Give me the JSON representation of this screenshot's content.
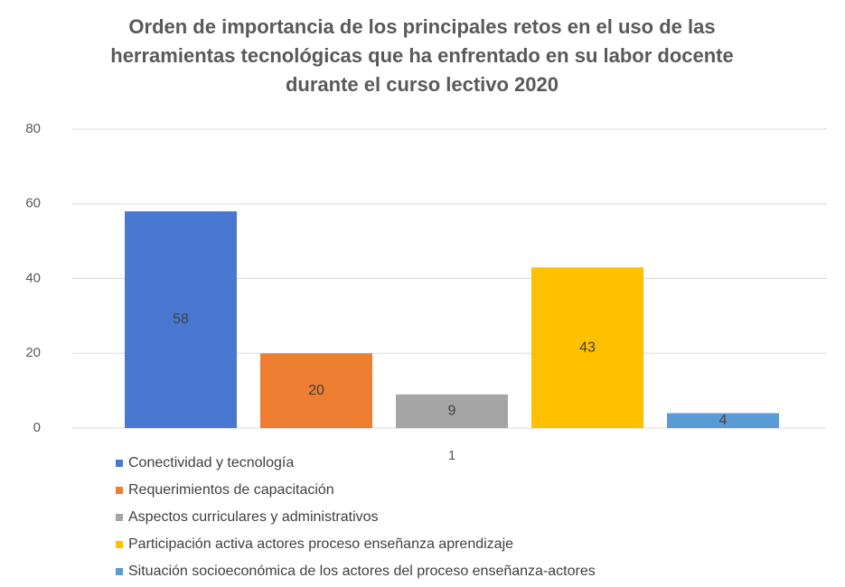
{
  "chart_data": {
    "type": "bar",
    "title": "Orden de importancia de los principales retos en el uso de las herramientas tecnológicas que ha enfrentado en su labor docente durante el curso lectivo 2020",
    "categories": [
      "1"
    ],
    "series": [
      {
        "name": "Conectividad y tecnología",
        "color": "#4a78d0",
        "values": [
          58
        ]
      },
      {
        "name": "Requerimientos de capacitación",
        "color": "#ed7d31",
        "values": [
          20
        ]
      },
      {
        "name": "Aspectos curriculares y administrativos",
        "color": "#a5a5a5",
        "values": [
          9
        ]
      },
      {
        "name": "Participación activa actores proceso enseñanza aprendizaje",
        "color": "#ffc000",
        "values": [
          43
        ]
      },
      {
        "name": "Situación socioeconómica de los actores del proceso enseñanza-actores",
        "color": "#5b9bd5",
        "values": [
          4
        ]
      }
    ],
    "ylim": [
      0,
      80
    ],
    "yticks": [
      0,
      20,
      40,
      60,
      80
    ],
    "grid": true,
    "legend": "bottom"
  }
}
